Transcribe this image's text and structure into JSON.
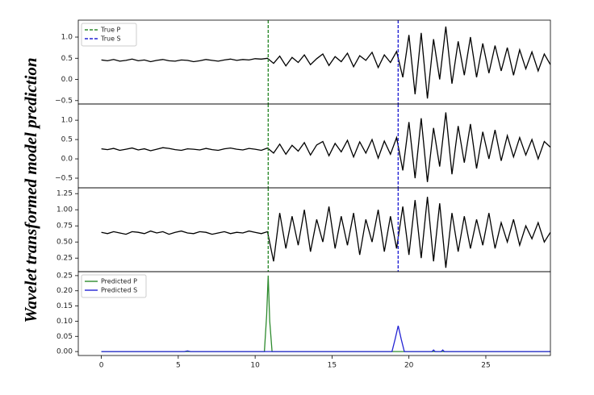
{
  "chart_data": {
    "type": "line",
    "ylabel": "Wavelet transformed model prediction",
    "xlim": [
      -1.5,
      29.2
    ],
    "xticks": [
      0,
      5,
      10,
      15,
      20,
      25
    ],
    "x": [
      0,
      0.4,
      0.8,
      1.2,
      1.6,
      2,
      2.4,
      2.8,
      3.2,
      3.6,
      4,
      4.4,
      4.8,
      5.2,
      5.6,
      6,
      6.4,
      6.8,
      7.2,
      7.6,
      8,
      8.4,
      8.8,
      9.2,
      9.6,
      10,
      10.4,
      10.8,
      11.2,
      11.6,
      12,
      12.4,
      12.8,
      13.2,
      13.6,
      14,
      14.4,
      14.8,
      15.2,
      15.6,
      16,
      16.4,
      16.8,
      17.2,
      17.6,
      18,
      18.4,
      18.8,
      19.2,
      19.6,
      20,
      20.4,
      20.8,
      21.2,
      21.6,
      22,
      22.4,
      22.8,
      23.2,
      23.6,
      24,
      24.4,
      24.8,
      25.2,
      25.6,
      26,
      26.4,
      26.8,
      27.2,
      27.6,
      28,
      28.4,
      28.8,
      29.2
    ],
    "vlines": [
      {
        "name": "True P",
        "x": 10.85,
        "color": "#2e8b2e",
        "style": "dashed"
      },
      {
        "name": "True S",
        "x": 19.3,
        "color": "#2323d4",
        "style": "dashed"
      }
    ],
    "vlines_legend": "upper left",
    "panels": [
      {
        "ylim": [
          -0.58,
          1.4
        ],
        "show_vlines": true,
        "yticks": [
          {
            "value": -0.5,
            "label": "−0.5"
          },
          {
            "value": 0,
            "label": "0.0"
          },
          {
            "value": 0.5,
            "label": "0.5"
          },
          {
            "value": 1,
            "label": "1.0"
          }
        ],
        "series": [
          {
            "color": "#000000",
            "values": [
              0.46,
              0.44,
              0.47,
              0.43,
              0.45,
              0.48,
              0.44,
              0.46,
              0.42,
              0.45,
              0.47,
              0.44,
              0.43,
              0.46,
              0.45,
              0.42,
              0.44,
              0.47,
              0.45,
              0.43,
              0.46,
              0.48,
              0.45,
              0.47,
              0.46,
              0.49,
              0.48,
              0.5,
              0.38,
              0.55,
              0.32,
              0.52,
              0.4,
              0.58,
              0.35,
              0.49,
              0.6,
              0.33,
              0.54,
              0.42,
              0.62,
              0.3,
              0.56,
              0.45,
              0.64,
              0.28,
              0.58,
              0.4,
              0.66,
              0.05,
              1.05,
              -0.35,
              1.1,
              -0.45,
              0.95,
              0.0,
              1.25,
              -0.1,
              0.9,
              0.1,
              1.0,
              0.05,
              0.85,
              0.15,
              0.8,
              0.2,
              0.75,
              0.1,
              0.7,
              0.25,
              0.65,
              0.2,
              0.6,
              0.35
            ]
          }
        ]
      },
      {
        "ylim": [
          -0.75,
          1.42
        ],
        "show_vlines": true,
        "yticks": [
          {
            "value": -0.5,
            "label": "−0.5"
          },
          {
            "value": 0,
            "label": "0.0"
          },
          {
            "value": 0.5,
            "label": "0.5"
          },
          {
            "value": 1,
            "label": "1.0"
          }
        ],
        "series": [
          {
            "color": "#000000",
            "values": [
              0.26,
              0.24,
              0.27,
              0.22,
              0.25,
              0.28,
              0.23,
              0.26,
              0.21,
              0.25,
              0.29,
              0.27,
              0.24,
              0.22,
              0.26,
              0.25,
              0.23,
              0.27,
              0.24,
              0.22,
              0.26,
              0.28,
              0.25,
              0.23,
              0.27,
              0.25,
              0.22,
              0.28,
              0.15,
              0.38,
              0.12,
              0.35,
              0.2,
              0.42,
              0.1,
              0.36,
              0.45,
              0.08,
              0.4,
              0.18,
              0.48,
              0.05,
              0.44,
              0.15,
              0.5,
              0.02,
              0.46,
              0.12,
              0.55,
              -0.3,
              0.95,
              -0.5,
              1.05,
              -0.6,
              0.8,
              -0.2,
              1.2,
              -0.4,
              0.85,
              -0.1,
              0.9,
              -0.25,
              0.7,
              0.0,
              0.75,
              -0.05,
              0.6,
              0.05,
              0.55,
              0.1,
              0.5,
              0.0,
              0.45,
              0.3
            ]
          }
        ]
      },
      {
        "ylim": [
          0.04,
          1.34
        ],
        "show_vlines": true,
        "yticks": [
          0.25,
          {
            "value": 0.5,
            "label": "0.50"
          },
          0.75,
          {
            "value": 1,
            "label": "1.00"
          },
          1.25
        ],
        "series": [
          {
            "color": "#000000",
            "values": [
              0.65,
              0.63,
              0.66,
              0.64,
              0.62,
              0.66,
              0.65,
              0.63,
              0.67,
              0.64,
              0.66,
              0.62,
              0.65,
              0.67,
              0.64,
              0.63,
              0.66,
              0.65,
              0.62,
              0.64,
              0.66,
              0.63,
              0.65,
              0.64,
              0.67,
              0.65,
              0.63,
              0.66,
              0.2,
              0.95,
              0.4,
              0.9,
              0.45,
              1.0,
              0.35,
              0.85,
              0.5,
              1.05,
              0.4,
              0.9,
              0.45,
              0.95,
              0.3,
              0.85,
              0.5,
              1.0,
              0.35,
              0.9,
              0.4,
              1.05,
              0.3,
              1.15,
              0.25,
              1.2,
              0.2,
              1.1,
              0.1,
              0.95,
              0.35,
              0.9,
              0.4,
              0.85,
              0.45,
              0.95,
              0.4,
              0.8,
              0.5,
              0.85,
              0.45,
              0.75,
              0.55,
              0.8,
              0.5,
              0.65
            ]
          }
        ]
      },
      {
        "ylim": [
          -0.013,
          0.263
        ],
        "show_vlines": false,
        "legend": "upper left",
        "yticks": [
          {
            "value": 0,
            "label": "0.00"
          },
          0.05,
          {
            "value": 0.1,
            "label": "0.10"
          },
          0.15,
          {
            "value": 0.2,
            "label": "0.20"
          },
          0.25
        ],
        "series": [
          {
            "name": "Predicted P",
            "color": "#2e8b2e",
            "x": [
              0,
              10.6,
              10.75,
              10.85,
              10.95,
              11.1,
              29.2
            ],
            "values": [
              0,
              0,
              0.12,
              0.25,
              0.1,
              0,
              0
            ]
          },
          {
            "name": "Predicted S",
            "color": "#2323d4",
            "x": [
              0,
              5.4,
              5.6,
              5.8,
              18.9,
              19.1,
              19.3,
              19.5,
              19.7,
              21.5,
              21.6,
              21.7,
              22.1,
              22.2,
              22.3,
              29.2
            ],
            "values": [
              0,
              0,
              0.002,
              0,
              0,
              0.04,
              0.085,
              0.04,
              0,
              0,
              0.005,
              0,
              0,
              0.005,
              0,
              0
            ]
          }
        ]
      }
    ]
  }
}
